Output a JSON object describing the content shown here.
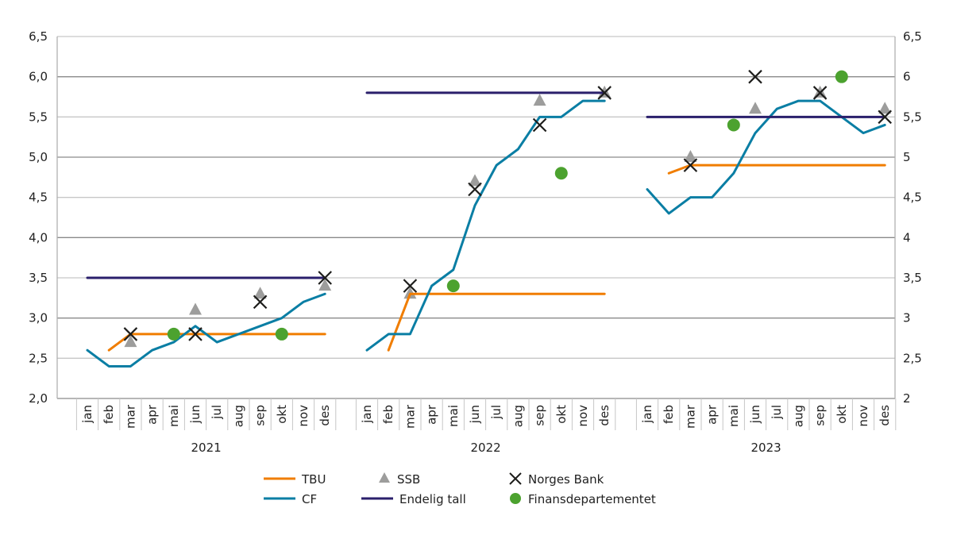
{
  "chart_data": {
    "type": "line",
    "title": "",
    "xlabel": "",
    "ylabel": "",
    "ylim": [
      2.0,
      6.5
    ],
    "grid": true,
    "legend_placement": "bottom",
    "y_ticks_left": [
      "6,5",
      "6,0",
      "5,5",
      "5,0",
      "4,5",
      "4,0",
      "3,5",
      "3,0",
      "2,5",
      "2,0"
    ],
    "y_ticks_right": [
      "6,5",
      "6",
      "5,5",
      "5",
      "4,5",
      "4",
      "3,5",
      "3",
      "2,5",
      "2"
    ],
    "y_tick_values": [
      6.5,
      6.0,
      5.5,
      5.0,
      4.5,
      4.0,
      3.5,
      3.0,
      2.5,
      2.0
    ],
    "months": [
      "jan",
      "feb",
      "mar",
      "apr",
      "mai",
      "jun",
      "jul",
      "aug",
      "sep",
      "okt",
      "nov",
      "des"
    ],
    "years": [
      "2021",
      "2022",
      "2023"
    ],
    "series": [
      {
        "name": "TBU",
        "kind": "line",
        "color": "#f07d00",
        "values": {
          "2021": [
            null,
            2.6,
            2.8,
            2.8,
            2.8,
            2.8,
            2.8,
            2.8,
            2.8,
            2.8,
            2.8,
            2.8
          ],
          "2022": [
            null,
            2.6,
            3.3,
            3.3,
            3.3,
            3.3,
            3.3,
            3.3,
            3.3,
            3.3,
            3.3,
            3.3
          ],
          "2023": [
            null,
            4.8,
            4.9,
            4.9,
            4.9,
            4.9,
            4.9,
            4.9,
            4.9,
            4.9,
            4.9,
            4.9
          ]
        }
      },
      {
        "name": "CF",
        "kind": "line",
        "color": "#0a7ea4",
        "values": {
          "2021": [
            2.6,
            2.4,
            2.4,
            2.6,
            2.7,
            2.9,
            2.7,
            2.8,
            2.9,
            3.0,
            3.2,
            3.3
          ],
          "2022": [
            2.6,
            2.8,
            2.8,
            3.4,
            3.6,
            4.4,
            4.9,
            5.1,
            5.5,
            5.5,
            5.7,
            5.7
          ],
          "2023": [
            4.6,
            4.3,
            4.5,
            4.5,
            4.8,
            5.3,
            5.6,
            5.7,
            5.7,
            5.5,
            5.3,
            5.4
          ]
        }
      },
      {
        "name": "Endelig tall",
        "kind": "line",
        "color": "#2a1f6b",
        "values": {
          "2021": [
            3.5,
            3.5,
            3.5,
            3.5,
            3.5,
            3.5,
            3.5,
            3.5,
            3.5,
            3.5,
            3.5,
            3.5
          ],
          "2022": [
            5.8,
            5.8,
            5.8,
            5.8,
            5.8,
            5.8,
            5.8,
            5.8,
            5.8,
            5.8,
            5.8,
            5.8
          ],
          "2023": [
            5.5,
            5.5,
            5.5,
            5.5,
            5.5,
            5.5,
            5.5,
            5.5,
            5.5,
            5.5,
            5.5,
            5.5
          ]
        }
      },
      {
        "name": "SSB",
        "kind": "triangle",
        "color": "#9d9d9c",
        "values": {
          "2021": [
            null,
            null,
            2.7,
            null,
            null,
            3.1,
            null,
            null,
            3.3,
            null,
            null,
            3.4
          ],
          "2022": [
            null,
            null,
            3.3,
            null,
            null,
            4.7,
            null,
            null,
            5.7,
            null,
            null,
            5.8
          ],
          "2023": [
            null,
            null,
            5.0,
            null,
            null,
            5.6,
            null,
            null,
            5.8,
            null,
            null,
            5.6
          ]
        }
      },
      {
        "name": "Norges Bank",
        "kind": "cross",
        "color": "#1d1d1b",
        "values": {
          "2021": [
            null,
            null,
            2.8,
            null,
            null,
            2.8,
            null,
            null,
            3.2,
            null,
            null,
            3.5
          ],
          "2022": [
            null,
            null,
            3.4,
            null,
            null,
            4.6,
            null,
            null,
            5.4,
            null,
            null,
            5.8
          ],
          "2023": [
            null,
            null,
            4.9,
            null,
            null,
            6.0,
            null,
            null,
            5.8,
            null,
            null,
            5.5
          ]
        }
      },
      {
        "name": "Finansdepartementet",
        "kind": "dot",
        "color": "#4ca22f",
        "values": {
          "2021": [
            null,
            null,
            null,
            null,
            2.8,
            null,
            null,
            null,
            null,
            2.8,
            null,
            null
          ],
          "2022": [
            null,
            null,
            null,
            null,
            3.4,
            null,
            null,
            null,
            null,
            4.8,
            null,
            null
          ],
          "2023": [
            null,
            null,
            null,
            null,
            5.4,
            null,
            null,
            null,
            null,
            6.0,
            null,
            null
          ]
        }
      }
    ],
    "legend_order": [
      "TBU",
      "SSB",
      "Norges Bank",
      "CF",
      "Endelig tall",
      "Finansdepartementet"
    ]
  }
}
